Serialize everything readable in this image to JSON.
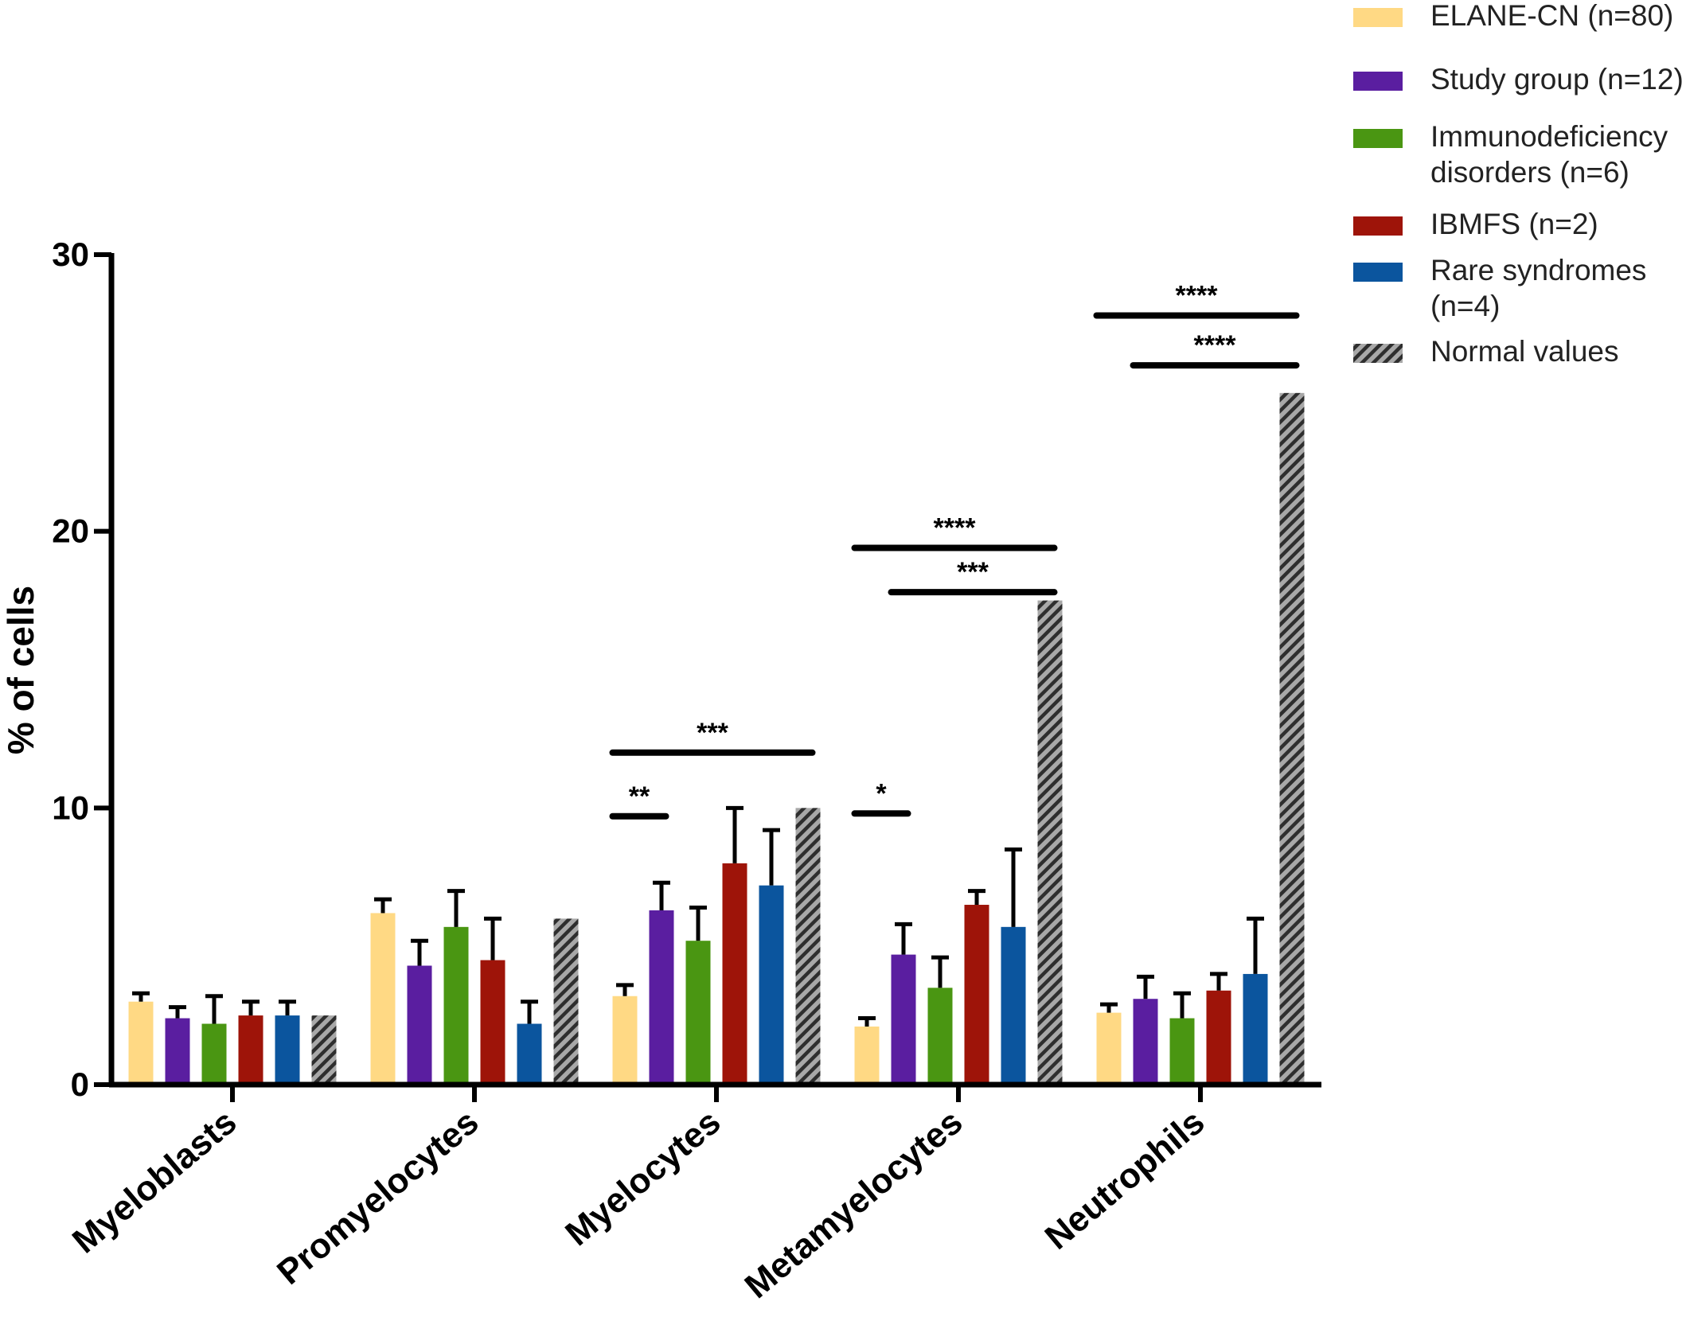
{
  "chart_data": {
    "type": "bar",
    "ylabel": "% of cells",
    "ylim": [
      0,
      30
    ],
    "yticks": [
      "0",
      "10",
      "20",
      "30"
    ],
    "categories": [
      "Myeloblasts",
      "Promyelocytes",
      "Myelocytes",
      "Metamyelocytes",
      "Neutrophils"
    ],
    "series": [
      {
        "name": "ELANE-CN (n=80)",
        "color": "#FFD984",
        "pattern": "solid",
        "values": [
          3.0,
          6.2,
          3.2,
          2.1,
          2.6
        ],
        "errors": [
          0.3,
          0.5,
          0.4,
          0.3,
          0.3
        ]
      },
      {
        "name": "Study group (n=12)",
        "color": "#5A1EA0",
        "pattern": "solid",
        "values": [
          2.4,
          4.3,
          6.3,
          4.7,
          3.1
        ],
        "errors": [
          0.4,
          0.9,
          1.0,
          1.1,
          0.8
        ]
      },
      {
        "name": "Immunodeficiency disorders (n=6)",
        "color": "#4A9612",
        "pattern": "solid",
        "values": [
          2.2,
          5.7,
          5.2,
          3.5,
          2.4
        ],
        "errors": [
          1.0,
          1.3,
          1.2,
          1.1,
          0.9
        ]
      },
      {
        "name": "IBMFS (n=2)",
        "color": "#9E1409",
        "pattern": "solid",
        "values": [
          2.5,
          4.5,
          8.0,
          6.5,
          3.4
        ],
        "errors": [
          0.5,
          1.5,
          2.0,
          0.5,
          0.6
        ]
      },
      {
        "name": "Rare syndromes (n=4)",
        "color": "#0B559E",
        "pattern": "solid",
        "values": [
          2.5,
          2.2,
          7.2,
          5.7,
          4.0
        ],
        "errors": [
          0.5,
          0.8,
          2.0,
          2.8,
          2.0
        ]
      },
      {
        "name": "Normal values",
        "color": "#9A9A9A",
        "pattern": "hatched",
        "values": [
          2.5,
          6.0,
          10.0,
          17.5,
          25.0
        ],
        "errors": [
          0,
          0,
          0,
          0,
          0
        ]
      }
    ],
    "significance": [
      {
        "category": 2,
        "from_series": 0,
        "to_series": 1,
        "y": 9.7,
        "label": "**"
      },
      {
        "category": 2,
        "from_series": 0,
        "to_series": 5,
        "y": 12.0,
        "label": "***"
      },
      {
        "category": 3,
        "from_series": 0,
        "to_series": 1,
        "y": 9.8,
        "label": "*"
      },
      {
        "category": 3,
        "from_series": 1,
        "to_series": 5,
        "y": 17.8,
        "label": "***"
      },
      {
        "category": 3,
        "from_series": 0,
        "to_series": 5,
        "y": 19.4,
        "label": "****"
      },
      {
        "category": 4,
        "from_series": 1,
        "to_series": 5,
        "y": 26.0,
        "label": "****"
      },
      {
        "category": 4,
        "from_series": 0,
        "to_series": 5,
        "y": 27.8,
        "label": "****"
      }
    ],
    "legend": {
      "position": "top-right",
      "entries": [
        {
          "lines": [
            "ELANE-CN (n=80)"
          ]
        },
        {
          "lines": [
            "Study group (n=12)"
          ]
        },
        {
          "lines": [
            "Immunodeficiency",
            "disorders (n=6)"
          ]
        },
        {
          "lines": [
            "IBMFS (n=2)"
          ]
        },
        {
          "lines": [
            "Rare syndromes",
            "(n=4)"
          ]
        },
        {
          "lines": [
            "Normal values"
          ]
        }
      ]
    }
  }
}
